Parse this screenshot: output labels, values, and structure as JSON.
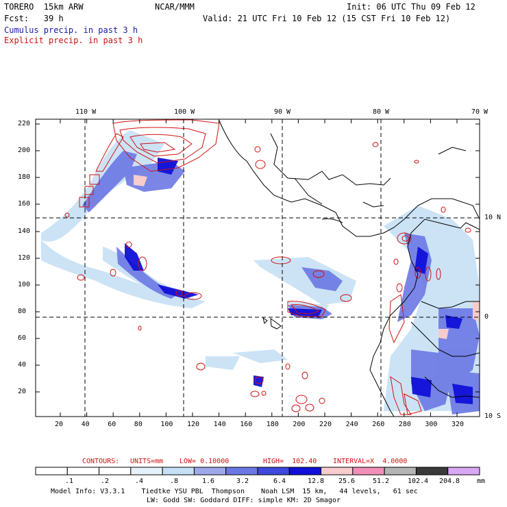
{
  "header": {
    "model": "TORERO  15km ARW",
    "org": "NCAR/MMM",
    "init": "Init: 06 UTC Thu 09 Feb 12",
    "fcst": "Fcst:   39 h",
    "valid": "Valid: 21 UTC Fri 10 Feb 12 (15 CST Fri 10 Feb 12)"
  },
  "legend": {
    "cumulus": "Cumulus precip. in past 3 h",
    "explicit": "Explicit precip. in past 3 h",
    "cumulus_color": "#1a1aa0",
    "explicit_color": "#d01010"
  },
  "axes": {
    "top_labels": [
      "110 W",
      "100 W",
      "90 W",
      "80 W",
      "70 W"
    ],
    "right_labels": [
      "10 N",
      "0",
      "10 S"
    ],
    "y_ticks": [
      "220",
      "200",
      "180",
      "160",
      "140",
      "120",
      "100",
      "80",
      "60",
      "40",
      "20"
    ],
    "x_ticks": [
      "20",
      "40",
      "60",
      "80",
      "100",
      "120",
      "140",
      "160",
      "180",
      "200",
      "220",
      "240",
      "260",
      "280",
      "300",
      "320"
    ]
  },
  "contour_info": {
    "label": "CONTOURS:",
    "units": "UNITS=mm",
    "low": "LOW= 0.10000",
    "high": "HIGH=  102.40",
    "interval": "INTERVAL=X  4.0000"
  },
  "colorbar": {
    "labels": [
      ".1",
      ".2",
      ".4",
      ".8",
      "1.6",
      "3.2",
      "6.4",
      "12.8",
      "25.6",
      "51.2",
      "102.4",
      "204.8"
    ],
    "unit": "mm",
    "colors": [
      "#ffffff",
      "#ffffff",
      "#ffffff",
      "#e6f2fb",
      "#c6e0f5",
      "#a0a8ec",
      "#6c78e4",
      "#3e48dc",
      "#1010d8",
      "#f6cccc",
      "#f090b8",
      "#b4b4b4",
      "#3a3a3a",
      "#d8a8f4"
    ]
  },
  "footer": {
    "line1": "Model Info: V3.3.1    Tiedtke YSU PBL  Thompson    Noah LSM  15 km,   44 levels,   61 sec",
    "line2": "LW: Godd SW: Goddard DIFF: simple KM: 2D Smagor"
  }
}
